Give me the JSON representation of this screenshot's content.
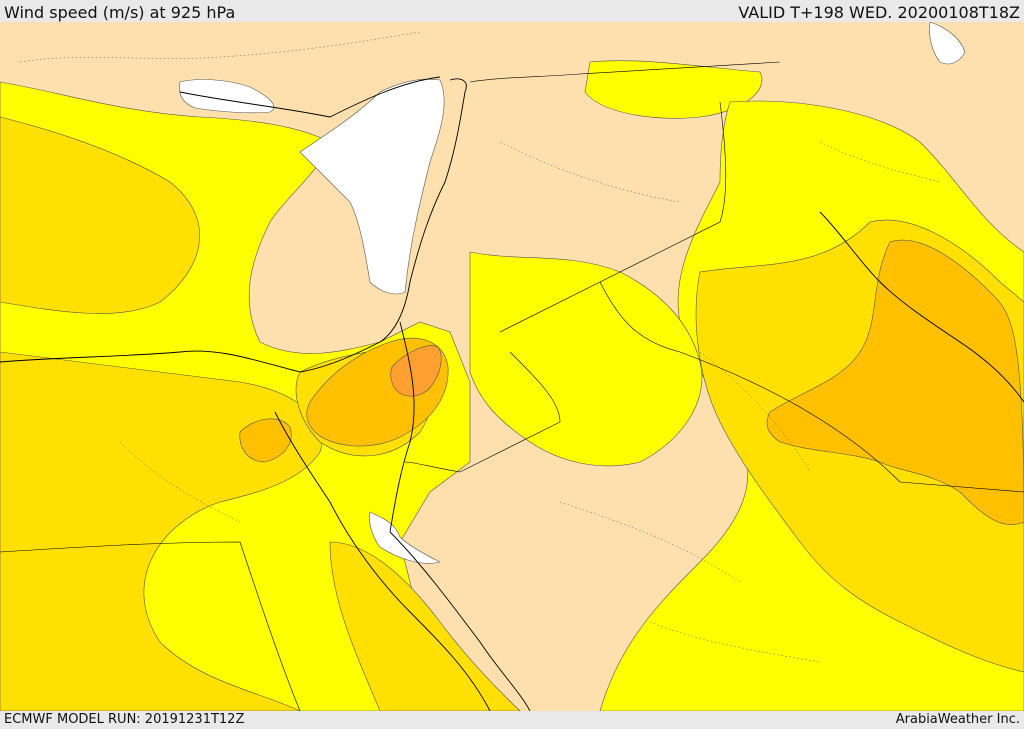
{
  "header": {
    "title": "Wind speed (m/s) at 925 hPa",
    "valid": "VALID T+198 WED. 20200108T18Z"
  },
  "footer": {
    "model_run": "ECMWF MODEL RUN: 20191231T12Z",
    "credit": "ArabiaWeather Inc."
  },
  "colors": {
    "sea_calm": "#ffffff",
    "light": "#fde0ae",
    "yellow": "#ffff00",
    "gold": "#ffe000",
    "orange_light": "#ffc000",
    "orange": "#ffa030"
  }
}
